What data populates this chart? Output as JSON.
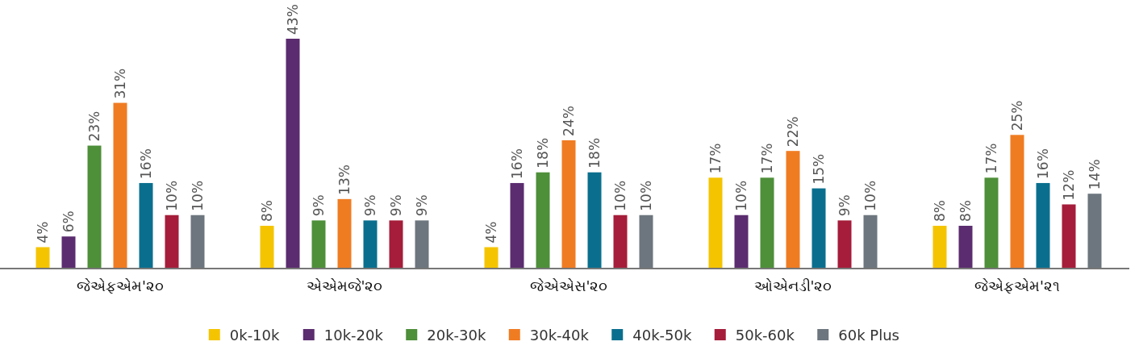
{
  "chart_data": {
    "type": "bar",
    "data_labels": true,
    "legend": "bottom",
    "categories": [
      "જેએફએમ'૨૦",
      "એએમજે'૨૦",
      "જેએએસ'૨૦",
      "ઓએનડી'૨૦",
      "જેએફએમ'૨૧"
    ],
    "series": [
      {
        "name": "0k-10k",
        "color": "#f5c400",
        "values": [
          4,
          8,
          4,
          17,
          8
        ],
        "value_labels": [
          "4%",
          "8%",
          "4%",
          "17%",
          "8%"
        ]
      },
      {
        "name": "10k-20k",
        "color": "#5b2c6f",
        "values": [
          6,
          43,
          16,
          10,
          8
        ],
        "value_labels": [
          "6%",
          "43%",
          "16%",
          "10%",
          "8%"
        ]
      },
      {
        "name": "20k-30k",
        "color": "#4e8f3a",
        "values": [
          23,
          9,
          18,
          17,
          17
        ],
        "value_labels": [
          "23%",
          "9%",
          "18%",
          "17%",
          "17%"
        ]
      },
      {
        "name": "30k-40k",
        "color": "#f07c22",
        "values": [
          31,
          13,
          24,
          22,
          25
        ],
        "value_labels": [
          "31%",
          "13%",
          "24%",
          "22%",
          "25%"
        ]
      },
      {
        "name": "40k-50k",
        "color": "#0a6f8e",
        "values": [
          16,
          9,
          18,
          15,
          16
        ],
        "value_labels": [
          "16%",
          "9%",
          "18%",
          "15%",
          "16%"
        ]
      },
      {
        "name": "50k-60k",
        "color": "#a51d3a",
        "values": [
          10,
          9,
          10,
          9,
          12
        ],
        "value_labels": [
          "10%",
          "9%",
          "10%",
          "9%",
          "12%"
        ]
      },
      {
        "name": "60k Plus",
        "color": "#6d767e",
        "values": [
          10,
          9,
          10,
          10,
          14
        ],
        "value_labels": [
          "10%",
          "9%",
          "10%",
          "10%",
          "14%"
        ]
      }
    ]
  }
}
